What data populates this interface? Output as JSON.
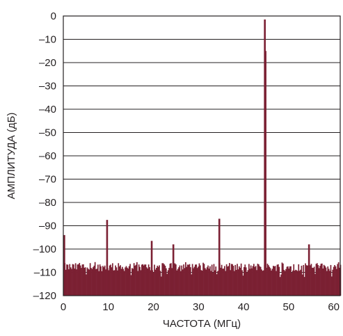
{
  "chart_data": {
    "type": "bar",
    "xlabel": "ЧАСТОТА (МГц)",
    "ylabel": "АМПЛИТУДА (дБ)",
    "xlim": [
      0,
      61.44
    ],
    "ylim": [
      -120,
      0
    ],
    "x_ticks": [
      "0",
      "10",
      "20",
      "30",
      "40",
      "50",
      "60"
    ],
    "y_ticks": [
      "0",
      "–10",
      "–20",
      "–30",
      "–40",
      "–50",
      "–60",
      "–70",
      "–80",
      "–90",
      "–100",
      "–110",
      "–120"
    ],
    "grid": "horizontal",
    "bar_color": "#7b2033",
    "noise_floor_db": [
      -113,
      -106
    ],
    "spurs": [
      {
        "freq_mhz": 0.2,
        "db": -94
      },
      {
        "freq_mhz": 9.7,
        "db": -87.5
      },
      {
        "freq_mhz": 19.6,
        "db": -96.5
      },
      {
        "freq_mhz": 24.4,
        "db": -98
      },
      {
        "freq_mhz": 34.6,
        "db": -87
      },
      {
        "freq_mhz": 44.7,
        "db": -1.5
      },
      {
        "freq_mhz": 44.85,
        "db": -15
      },
      {
        "freq_mhz": 54.5,
        "db": -98
      }
    ]
  }
}
